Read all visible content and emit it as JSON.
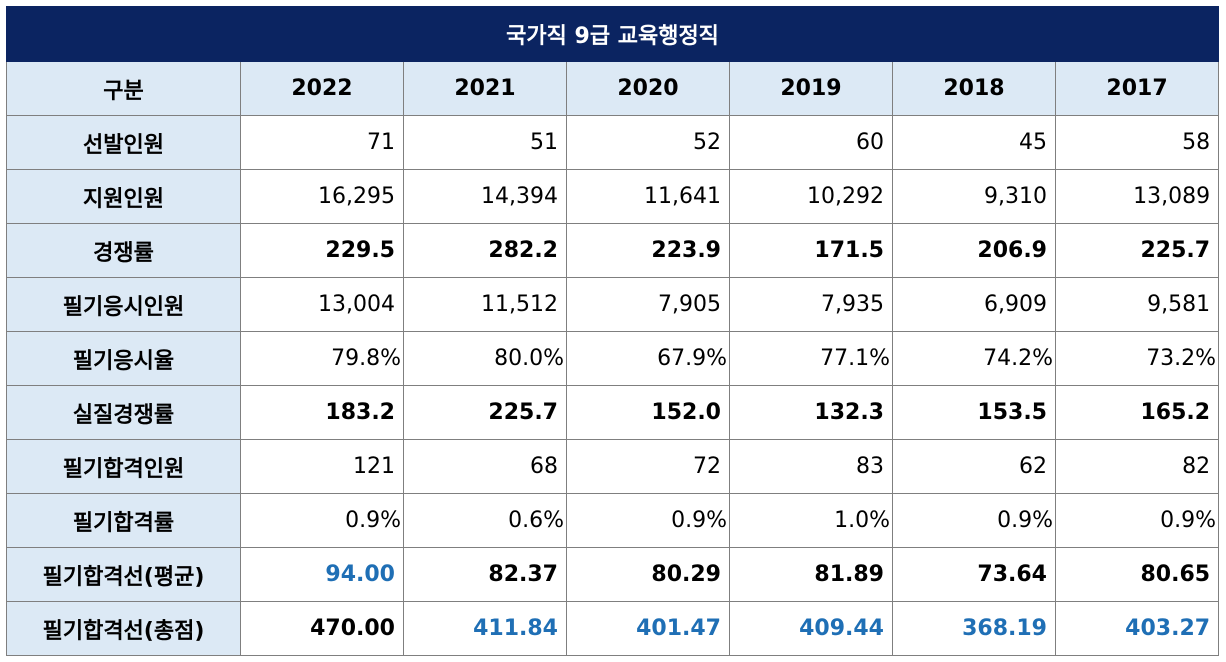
{
  "table": {
    "title": "국가직 9급 교육행정직",
    "header": [
      "구분",
      "2022",
      "2021",
      "2020",
      "2019",
      "2018",
      "2017"
    ],
    "rows": [
      {
        "label": "선발인원",
        "values": [
          "71",
          "51",
          "52",
          "60",
          "45",
          "58"
        ]
      },
      {
        "label": "지원인원",
        "values": [
          "16,295",
          "14,394",
          "11,641",
          "10,292",
          "9,310",
          "13,089"
        ]
      },
      {
        "label": "경쟁률",
        "values": [
          "229.5",
          "282.2",
          "223.9",
          "171.5",
          "206.9",
          "225.7"
        ]
      },
      {
        "label": "필기응시인원",
        "values": [
          "13,004",
          "11,512",
          "7,905",
          "7,935",
          "6,909",
          "9,581"
        ]
      },
      {
        "label": "필기응시율",
        "values": [
          "79.8%",
          "80.0%",
          "67.9%",
          "77.1%",
          "74.2%",
          "73.2%"
        ]
      },
      {
        "label": "실질경쟁률",
        "values": [
          "183.2",
          "225.7",
          "152.0",
          "132.3",
          "153.5",
          "165.2"
        ]
      },
      {
        "label": "필기합격인원",
        "values": [
          "121",
          "68",
          "72",
          "83",
          "62",
          "82"
        ]
      },
      {
        "label": "필기합격률",
        "values": [
          "0.9%",
          "0.6%",
          "0.9%",
          "1.0%",
          "0.9%",
          "0.9%"
        ]
      },
      {
        "label": "필기합격선(평균)",
        "values": [
          "94.00",
          "82.37",
          "80.29",
          "81.89",
          "73.64",
          "80.65"
        ]
      },
      {
        "label": "필기합격선(총점)",
        "values": [
          "470.00",
          "411.84",
          "401.47",
          "409.44",
          "368.19",
          "403.27"
        ]
      }
    ]
  },
  "colors": {
    "title_bg": "#0b2461",
    "header_bg": "#dce9f5",
    "highlight_text": "#1f6fb5"
  }
}
